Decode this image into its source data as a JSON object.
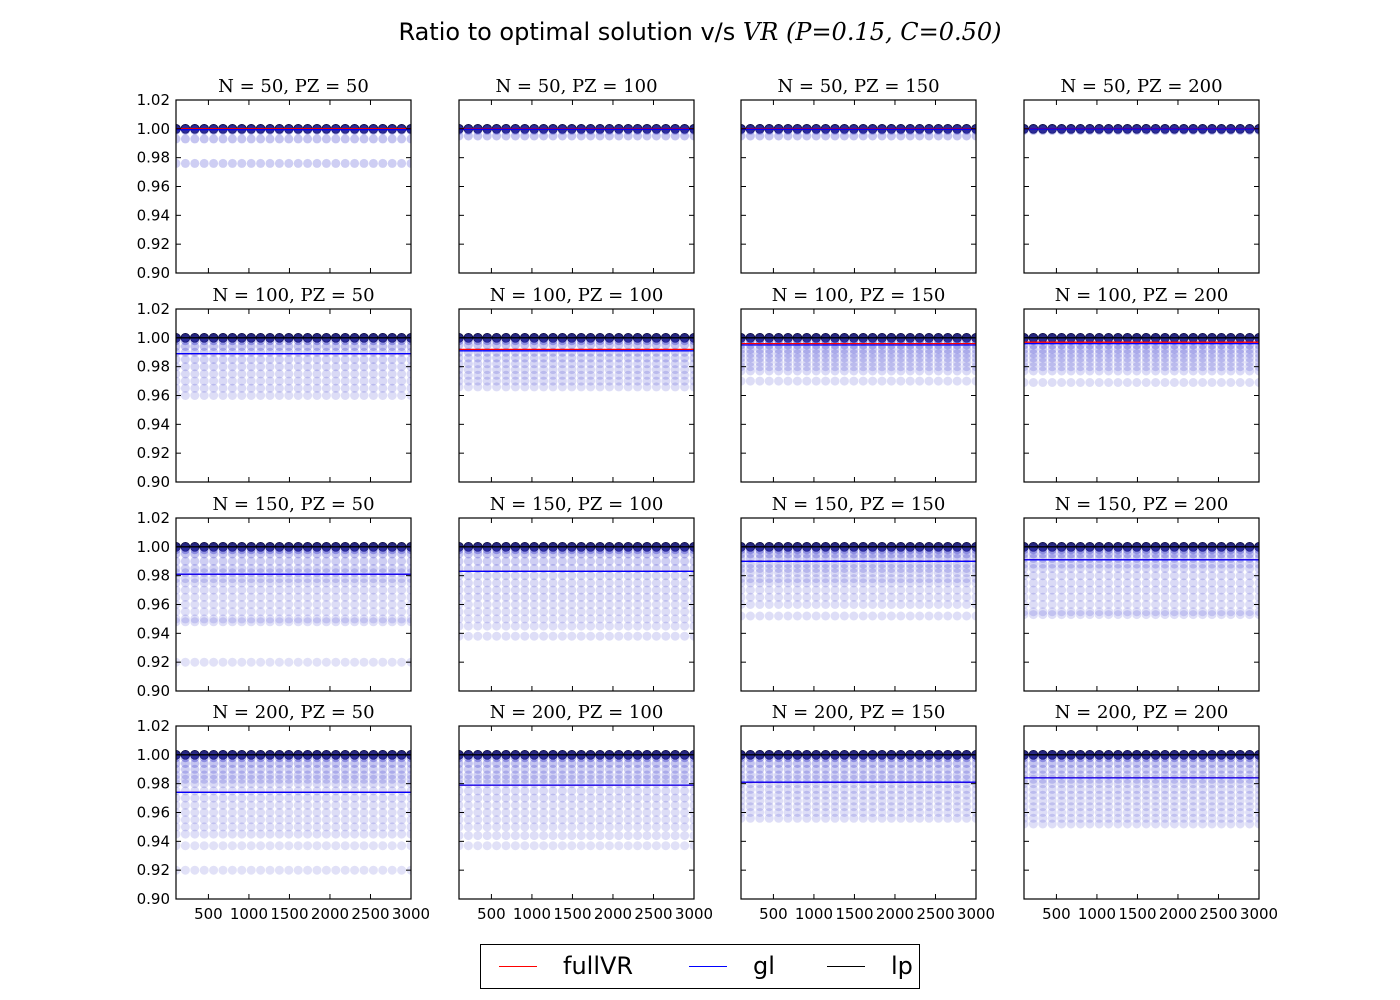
{
  "title": {
    "prefix": "Ratio to optimal solution v/s",
    "math": "VR (P=0.15, C=0.50)"
  },
  "chart_data": {
    "type": "scatter",
    "layout": "4x4 grid of subplots",
    "ylim": [
      0.9,
      1.02
    ],
    "yticks": [
      "0.90",
      "0.92",
      "0.94",
      "0.96",
      "0.98",
      "1.00",
      "1.02"
    ],
    "xticks": [
      "500",
      "1000",
      "1500",
      "2000",
      "2500",
      "3000"
    ],
    "xlim": [
      100,
      3000
    ],
    "grid": false,
    "legend_position": "bottom-center",
    "series": [
      {
        "name": "fullVR",
        "color": "#ff0000"
      },
      {
        "name": "gl",
        "color": "#0000ff"
      },
      {
        "name": "lp",
        "color": "#000000"
      }
    ],
    "panels": [
      {
        "title": "N = 50, PZ = 50",
        "point_levels": [
          1.0,
          0.999,
          0.993,
          0.976
        ],
        "lines": {
          "fullVR": 1.0,
          "gl": 0.9995,
          "lp": 1.0
        }
      },
      {
        "title": "N = 50, PZ = 100",
        "point_levels": [
          1.0,
          0.999,
          0.995
        ],
        "lines": {
          "fullVR": 1.0,
          "gl": 0.9997,
          "lp": 1.0
        }
      },
      {
        "title": "N = 50, PZ = 150",
        "point_levels": [
          1.0,
          0.999,
          0.995
        ],
        "lines": {
          "fullVR": 1.0,
          "gl": 0.9997,
          "lp": 1.0
        }
      },
      {
        "title": "N = 50, PZ = 200",
        "point_levels": [
          1.0,
          0.999
        ],
        "lines": {
          "fullVR": 1.0,
          "gl": 0.9999,
          "lp": 1.0
        }
      },
      {
        "title": "N = 100, PZ = 50",
        "point_levels": [
          1.0,
          0.998,
          0.994,
          0.99,
          0.985,
          0.98,
          0.975,
          0.97,
          0.965,
          0.96
        ],
        "lines": {
          "fullVR": 0.989,
          "gl": 0.989,
          "lp": 1.0
        }
      },
      {
        "title": "N = 100, PZ = 100",
        "point_levels": [
          1.0,
          0.998,
          0.995,
          0.99,
          0.986,
          0.982,
          0.978,
          0.974,
          0.97,
          0.966
        ],
        "lines": {
          "fullVR": 0.992,
          "gl": 0.991,
          "lp": 1.0
        }
      },
      {
        "title": "N = 100, PZ = 150",
        "point_levels": [
          1.0,
          0.998,
          0.995,
          0.992,
          0.989,
          0.986,
          0.983,
          0.98,
          0.977,
          0.97
        ],
        "lines": {
          "fullVR": 0.996,
          "gl": 0.995,
          "lp": 1.0
        }
      },
      {
        "title": "N = 100, PZ = 200",
        "point_levels": [
          1.0,
          0.998,
          0.995,
          0.992,
          0.989,
          0.986,
          0.983,
          0.98,
          0.977,
          0.969
        ],
        "lines": {
          "fullVR": 0.997,
          "gl": 0.996,
          "lp": 1.0
        }
      },
      {
        "title": "N = 150, PZ = 50",
        "point_levels": [
          1.0,
          0.998,
          0.995,
          0.99,
          0.985,
          0.982,
          0.978,
          0.975,
          0.97,
          0.965,
          0.96,
          0.955,
          0.95,
          0.948,
          0.92
        ],
        "lines": {
          "fullVR": 0.981,
          "gl": 0.981,
          "lp": 1.0
        }
      },
      {
        "title": "N = 150, PZ = 100",
        "point_levels": [
          1.0,
          0.998,
          0.995,
          0.99,
          0.985,
          0.98,
          0.975,
          0.97,
          0.965,
          0.96,
          0.955,
          0.95,
          0.945,
          0.938
        ],
        "lines": {
          "fullVR": 0.983,
          "gl": 0.983,
          "lp": 1.0
        }
      },
      {
        "title": "N = 150, PZ = 150",
        "point_levels": [
          1.0,
          0.998,
          0.995,
          0.992,
          0.988,
          0.985,
          0.982,
          0.978,
          0.975,
          0.97,
          0.965,
          0.96,
          0.952
        ],
        "lines": {
          "fullVR": 0.99,
          "gl": 0.99,
          "lp": 1.0
        }
      },
      {
        "title": "N = 150, PZ = 200",
        "point_levels": [
          1.0,
          0.998,
          0.995,
          0.992,
          0.988,
          0.985,
          0.98,
          0.975,
          0.97,
          0.965,
          0.96,
          0.955,
          0.953
        ],
        "lines": {
          "fullVR": 0.991,
          "gl": 0.991,
          "lp": 1.0
        }
      },
      {
        "title": "N = 200, PZ = 50",
        "point_levels": [
          1.0,
          0.998,
          0.994,
          0.99,
          0.986,
          0.983,
          0.98,
          0.975,
          0.97,
          0.965,
          0.96,
          0.955,
          0.95,
          0.945,
          0.937,
          0.92
        ],
        "lines": {
          "fullVR": 0.974,
          "gl": 0.974,
          "lp": 1.0
        }
      },
      {
        "title": "N = 200, PZ = 100",
        "point_levels": [
          1.0,
          0.998,
          0.994,
          0.99,
          0.986,
          0.983,
          0.98,
          0.975,
          0.97,
          0.965,
          0.96,
          0.955,
          0.95,
          0.944,
          0.937
        ],
        "lines": {
          "fullVR": 0.979,
          "gl": 0.979,
          "lp": 1.0
        }
      },
      {
        "title": "N = 200, PZ = 150",
        "point_levels": [
          1.0,
          0.998,
          0.994,
          0.99,
          0.986,
          0.983,
          0.98,
          0.976,
          0.972,
          0.968,
          0.964,
          0.96,
          0.956
        ],
        "lines": {
          "fullVR": 0.981,
          "gl": 0.981,
          "lp": 1.0
        }
      },
      {
        "title": "N = 200, PZ = 200",
        "point_levels": [
          1.0,
          0.998,
          0.994,
          0.99,
          0.986,
          0.983,
          0.98,
          0.976,
          0.972,
          0.968,
          0.964,
          0.96,
          0.956,
          0.952
        ],
        "lines": {
          "fullVR": 0.984,
          "gl": 0.984,
          "lp": 1.0
        }
      }
    ]
  }
}
